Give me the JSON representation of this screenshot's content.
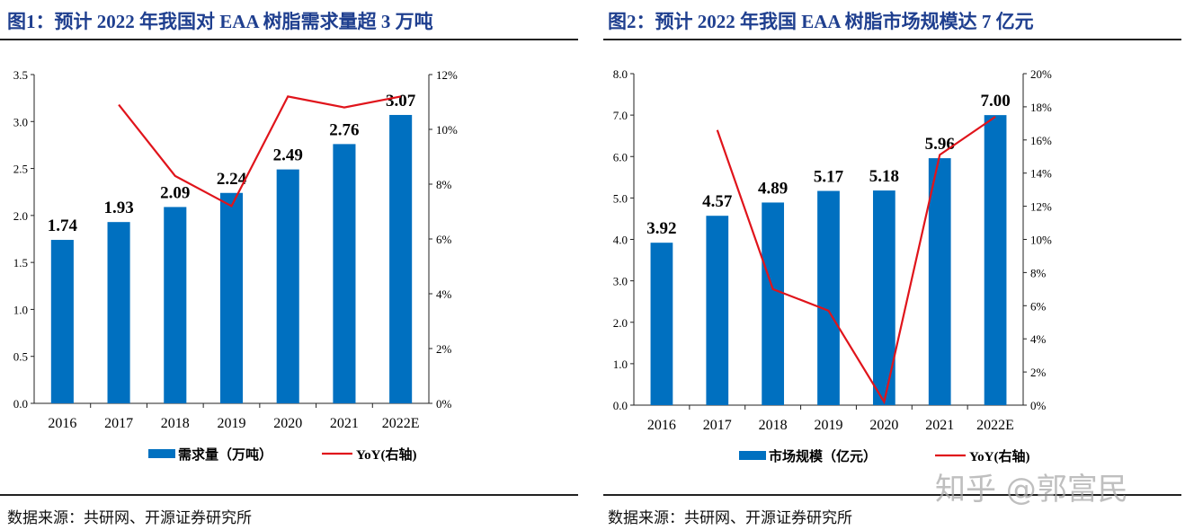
{
  "watermark": "知乎 @郭富民",
  "colors": {
    "bar": "#0070c0",
    "line": "#e0141b",
    "title": "#1f3f8f"
  },
  "chart_data": [
    {
      "type": "bar+line",
      "title": "图1：预计 2022 年我国对 EAA 树脂需求量超 3 万吨",
      "source": "数据来源：共研网、开源证券研究所",
      "categories": [
        "2016",
        "2017",
        "2018",
        "2019",
        "2020",
        "2021",
        "2022E"
      ],
      "series": [
        {
          "name": "需求量（万吨）",
          "type": "bar",
          "axis": "left",
          "values": [
            1.74,
            1.93,
            2.09,
            2.24,
            2.49,
            2.76,
            3.07
          ],
          "labels": [
            "1.74",
            "1.93",
            "2.09",
            "2.24",
            "2.49",
            "2.76",
            "3.07"
          ]
        },
        {
          "name": "YoY(右轴)",
          "type": "line",
          "axis": "right",
          "values": [
            null,
            10.9,
            8.3,
            7.2,
            11.2,
            10.8,
            11.2
          ]
        }
      ],
      "ylim": [
        0,
        3.5
      ],
      "yticks": [
        "0.0",
        "0.5",
        "1.0",
        "1.5",
        "2.0",
        "2.5",
        "3.0",
        "3.5"
      ],
      "y2lim": [
        0,
        12
      ],
      "y2ticks": [
        "0%",
        "2%",
        "4%",
        "6%",
        "8%",
        "10%",
        "12%"
      ],
      "legend": "bottom",
      "grid": false
    },
    {
      "type": "bar+line",
      "title": "图2：预计 2022 年我国 EAA 树脂市场规模达 7 亿元",
      "source": "数据来源：共研网、开源证券研究所",
      "categories": [
        "2016",
        "2017",
        "2018",
        "2019",
        "2020",
        "2021",
        "2022E"
      ],
      "series": [
        {
          "name": "市场规模（亿元）",
          "type": "bar",
          "axis": "left",
          "values": [
            3.92,
            4.57,
            4.89,
            5.17,
            5.18,
            5.96,
            7.0
          ],
          "labels": [
            "3.92",
            "4.57",
            "4.89",
            "5.17",
            "5.18",
            "5.96",
            "7.00"
          ]
        },
        {
          "name": "YoY(右轴)",
          "type": "line",
          "axis": "right",
          "values": [
            null,
            16.6,
            7.0,
            5.7,
            0.2,
            15.1,
            17.4
          ]
        }
      ],
      "ylim": [
        0,
        8
      ],
      "yticks": [
        "0.0",
        "1.0",
        "2.0",
        "3.0",
        "4.0",
        "5.0",
        "6.0",
        "7.0",
        "8.0"
      ],
      "y2lim": [
        0,
        20
      ],
      "y2ticks": [
        "0%",
        "2%",
        "4%",
        "6%",
        "8%",
        "10%",
        "12%",
        "14%",
        "16%",
        "18%",
        "20%"
      ],
      "legend": "bottom",
      "grid": false
    }
  ]
}
